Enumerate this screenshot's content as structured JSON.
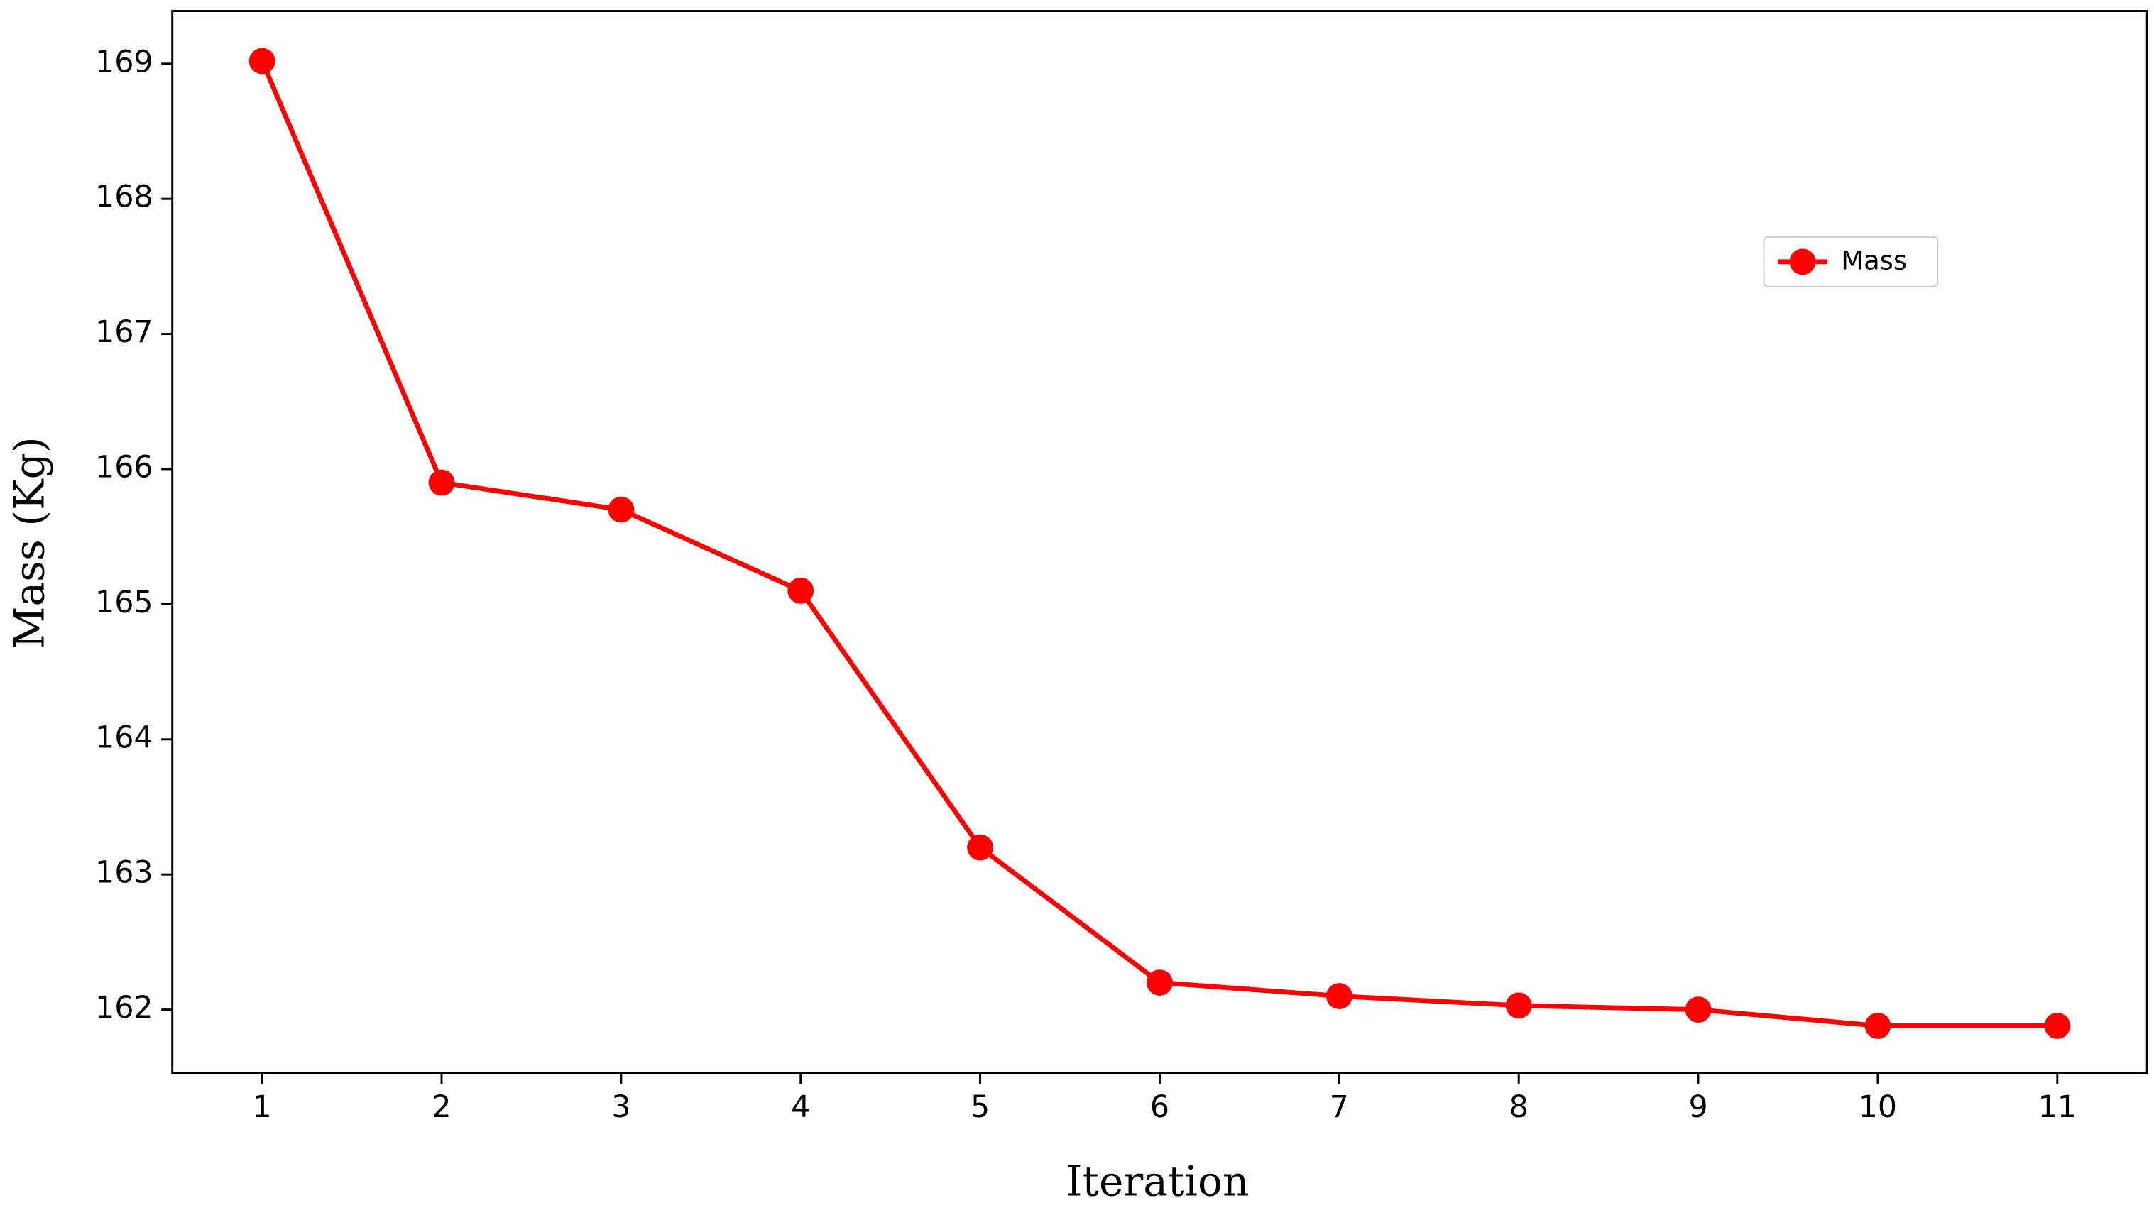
{
  "chart_data": {
    "type": "line",
    "x_label": "Iteration",
    "y_label": "Mass (Kg)",
    "x": [
      1,
      2,
      3,
      4,
      5,
      6,
      7,
      8,
      9,
      10,
      11
    ],
    "series": [
      {
        "name": "Mass",
        "color": "#ff0000",
        "values": [
          169.02,
          165.9,
          165.7,
          165.1,
          163.2,
          162.2,
          162.1,
          162.03,
          162.0,
          161.88,
          161.88
        ]
      }
    ],
    "xlim": [
      0.5,
      11.5
    ],
    "xticks": [
      1,
      2,
      3,
      4,
      5,
      6,
      7,
      8,
      9,
      10,
      11
    ],
    "ylim": [
      161.53,
      169.39
    ],
    "yticks": [
      162,
      163,
      164,
      165,
      166,
      167,
      168,
      169
    ],
    "grid": false,
    "legend": "upper right"
  }
}
